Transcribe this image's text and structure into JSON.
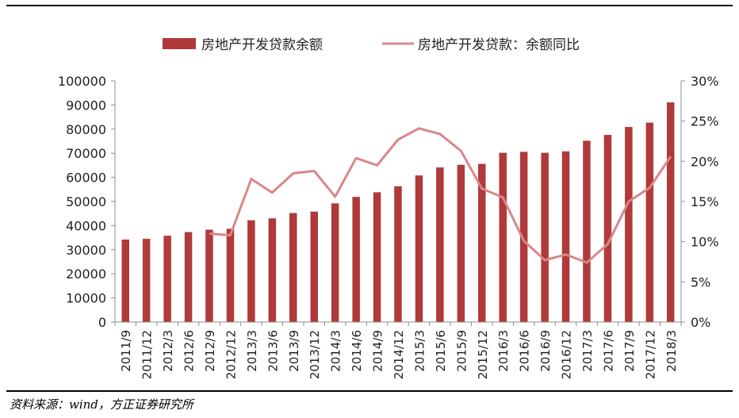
{
  "source_note": "资料来源：wind，方正证券研究所",
  "colors": {
    "bar": "#B03A3A",
    "line": "#D9878A",
    "axis": "#8C8C8C"
  },
  "chart_data": {
    "type": "bar",
    "title": "",
    "xlabel": "",
    "ylabel": "",
    "y2label": "",
    "legend_position": "top",
    "grid": false,
    "ylim": [
      0,
      100000
    ],
    "y_ticks": [
      "0",
      "10000",
      "20000",
      "30000",
      "40000",
      "50000",
      "60000",
      "70000",
      "80000",
      "90000",
      "100000"
    ],
    "y2lim": [
      0,
      0.3
    ],
    "y2_ticks": [
      "0%",
      "5%",
      "10%",
      "15%",
      "20%",
      "25%",
      "30%"
    ],
    "categories": [
      "2011/9",
      "2011/12",
      "2012/3",
      "2012/6",
      "2012/9",
      "2012/12",
      "2013/3",
      "2013/6",
      "2013/9",
      "2013/12",
      "2014/3",
      "2014/6",
      "2014/9",
      "2014/12",
      "2015/3",
      "2015/6",
      "2015/9",
      "2015/12",
      "2016/3",
      "2016/6",
      "2016/9",
      "2016/12",
      "2017/3",
      "2017/6",
      "2017/9",
      "2017/12",
      "2018/3"
    ],
    "series": [
      {
        "name": "房地产开发贷款余额",
        "type": "bar",
        "axis": "left",
        "values": [
          34200,
          34500,
          35800,
          37300,
          38300,
          38700,
          42200,
          43000,
          45200,
          45800,
          49200,
          51900,
          53800,
          56300,
          60800,
          64100,
          65200,
          65600,
          70200,
          70600,
          70200,
          70800,
          75200,
          77600,
          80900,
          82700,
          91100
        ]
      },
      {
        "name": "房地产开发贷款：余额同比",
        "type": "line",
        "axis": "right",
        "values": [
          null,
          null,
          null,
          null,
          0.11,
          0.108,
          0.178,
          0.161,
          0.185,
          0.188,
          0.156,
          0.204,
          0.195,
          0.227,
          0.241,
          0.234,
          0.213,
          0.166,
          0.155,
          0.101,
          0.077,
          0.084,
          0.074,
          0.097,
          0.15,
          0.167,
          0.206
        ]
      }
    ]
  }
}
